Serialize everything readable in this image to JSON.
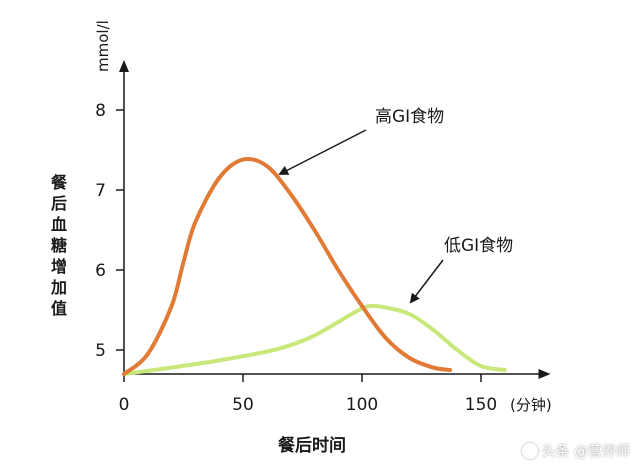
{
  "chart_data": {
    "type": "line",
    "xlabel": "餐后时间",
    "ylabel": "餐后血糖增加值",
    "y_unit": "mmol/l",
    "x_unit": "(分钟)",
    "x_ticks": [
      "0",
      "50",
      "100",
      "150"
    ],
    "y_ticks": [
      "5",
      "6",
      "7",
      "8"
    ],
    "xlim": [
      0,
      175
    ],
    "ylim": [
      4.7,
      8.5
    ],
    "grid": false,
    "series": [
      {
        "name": "高GI食物",
        "color": "#e07a35",
        "x": [
          0,
          10,
          20,
          25,
          30,
          40,
          50,
          60,
          70,
          80,
          90,
          100,
          110,
          120,
          130,
          137
        ],
        "y": [
          4.7,
          4.95,
          5.55,
          6.1,
          6.6,
          7.15,
          7.38,
          7.3,
          6.95,
          6.5,
          6.0,
          5.55,
          5.15,
          4.9,
          4.78,
          4.75
        ]
      },
      {
        "name": "低GI食物",
        "color": "#c8e87a",
        "x": [
          0,
          20,
          40,
          60,
          70,
          80,
          90,
          100,
          105,
          110,
          120,
          130,
          140,
          150,
          160
        ],
        "y": [
          4.7,
          4.78,
          4.87,
          4.98,
          5.06,
          5.18,
          5.35,
          5.52,
          5.55,
          5.53,
          5.45,
          5.25,
          5.0,
          4.8,
          4.75
        ]
      }
    ],
    "annotations": [
      {
        "text": "高GI食物",
        "series": 0
      },
      {
        "text": "低GI食物",
        "series": 1
      }
    ]
  },
  "watermark": "头条 @营养师"
}
